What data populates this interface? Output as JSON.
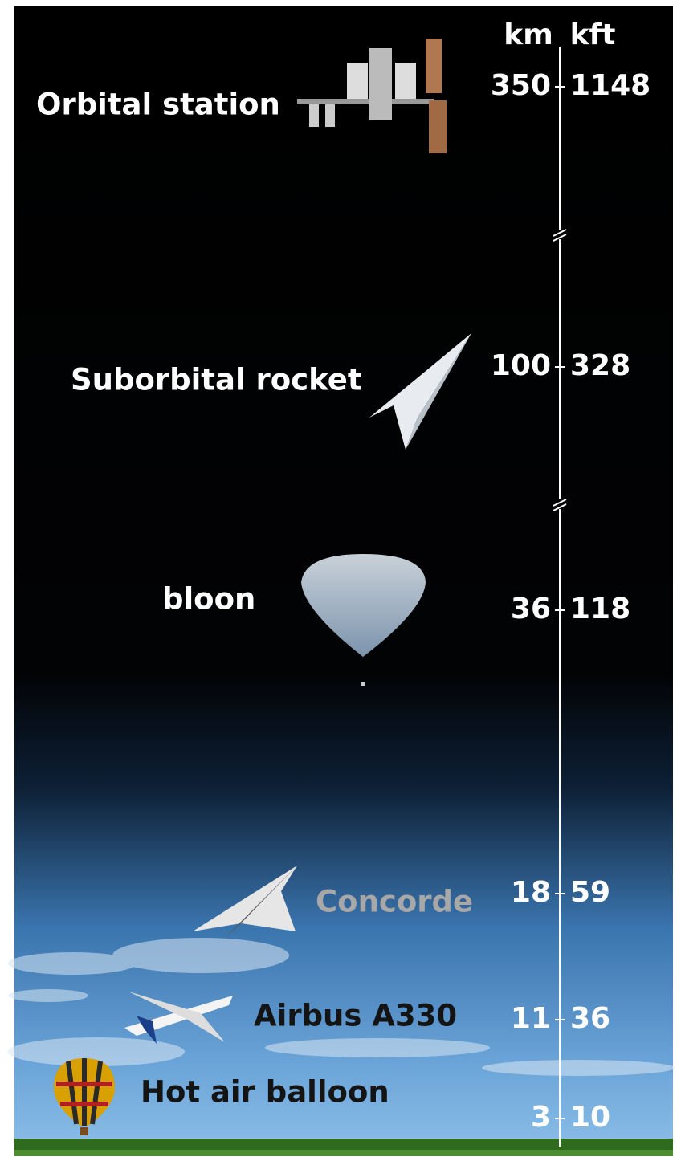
{
  "header": {
    "km": "km",
    "kft": "kft"
  },
  "items": [
    {
      "label": "Orbital station",
      "km": 350,
      "kft": 1148
    },
    {
      "label": "Suborbital rocket",
      "km": 100,
      "kft": 328
    },
    {
      "label": "bloon",
      "km": 36,
      "kft": 118
    },
    {
      "label": "Concorde",
      "km": 18,
      "kft": 59
    },
    {
      "label": "Airbus A330",
      "km": 11,
      "kft": 36
    },
    {
      "label": "Hot air balloon",
      "km": 3,
      "kft": 10
    }
  ]
}
